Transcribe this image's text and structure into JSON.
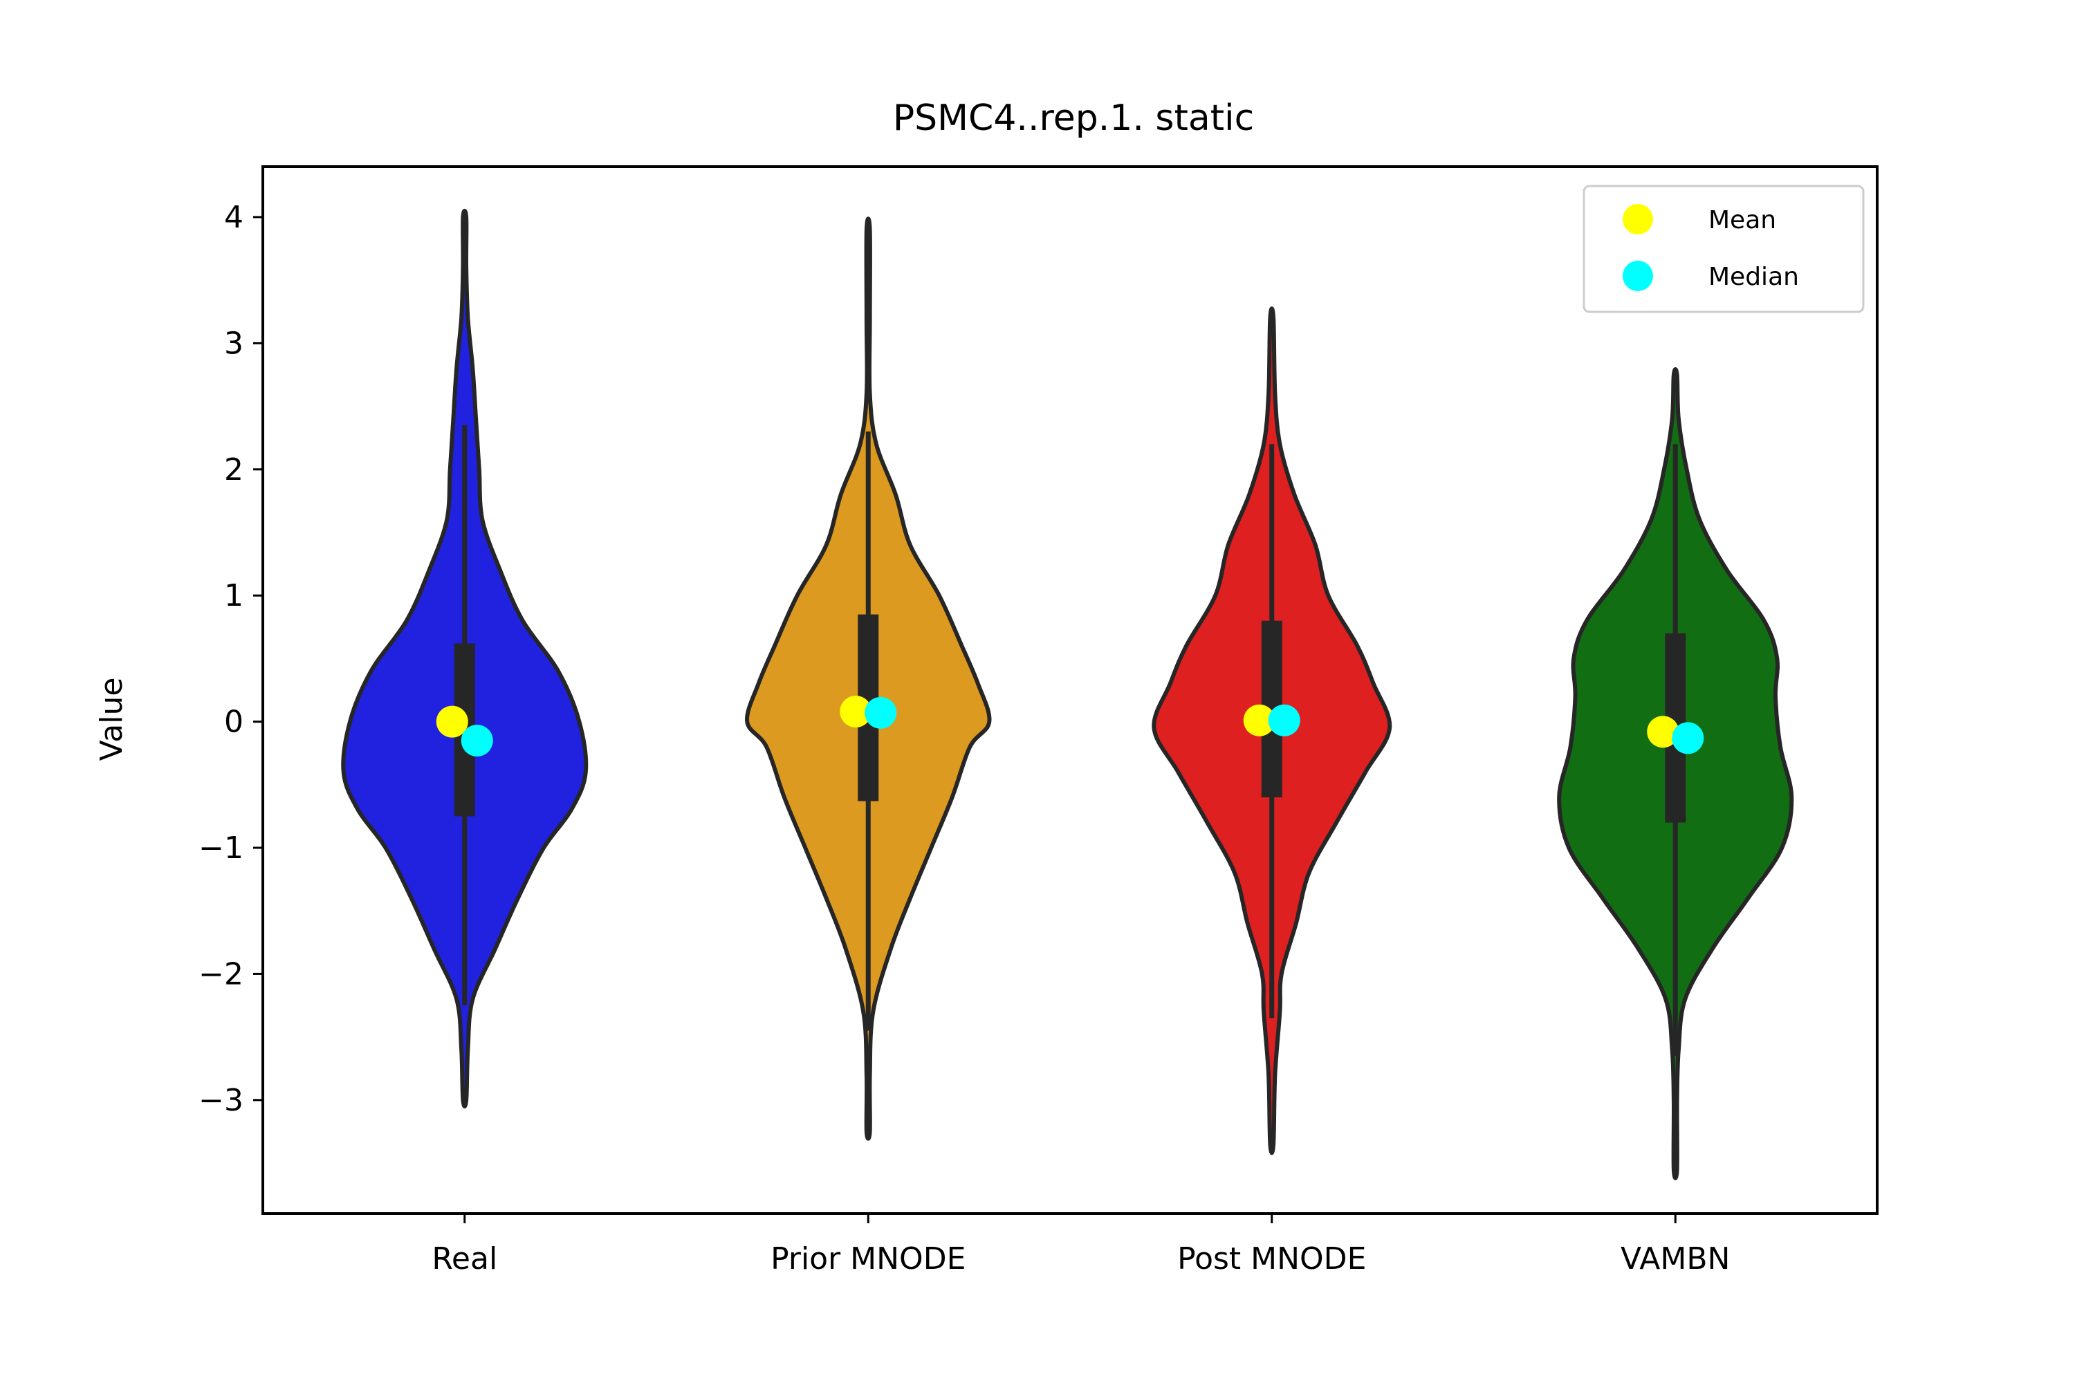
{
  "chart_data": {
    "type": "violin",
    "title": "PSMC4..rep.1. static",
    "xlabel": "",
    "ylabel": "Value",
    "ylim": [
      -3.9,
      4.4
    ],
    "yticks": [
      -3,
      -2,
      -1,
      0,
      1,
      2,
      3,
      4
    ],
    "ytick_labels": [
      "−3",
      "−2",
      "−1",
      "0",
      "1",
      "2",
      "3",
      "4"
    ],
    "categories": [
      "Real",
      "Prior MNODE",
      "Post MNODE",
      "VAMBN"
    ],
    "legend": {
      "position": "top-right",
      "entries": [
        {
          "label": "Mean",
          "color": "#ffff00"
        },
        {
          "label": "Median",
          "color": "#00ffff"
        }
      ]
    },
    "series": [
      {
        "category": "Real",
        "color": "#2121e0",
        "min": -3.0,
        "max": 4.0,
        "whisker_low": -2.25,
        "whisker_high": 2.35,
        "q1": -0.75,
        "q3": 0.62,
        "mean": 0.0,
        "median": -0.15,
        "density": [
          [
            -3.0,
            0.01
          ],
          [
            -2.6,
            0.02
          ],
          [
            -2.2,
            0.05
          ],
          [
            -1.8,
            0.19
          ],
          [
            -1.4,
            0.33
          ],
          [
            -1.0,
            0.49
          ],
          [
            -0.7,
            0.66
          ],
          [
            -0.4,
            0.75
          ],
          [
            0.0,
            0.71
          ],
          [
            0.4,
            0.58
          ],
          [
            0.8,
            0.36
          ],
          [
            1.2,
            0.22
          ],
          [
            1.6,
            0.11
          ],
          [
            2.0,
            0.09
          ],
          [
            2.4,
            0.07
          ],
          [
            2.8,
            0.05
          ],
          [
            3.2,
            0.02
          ],
          [
            3.6,
            0.01
          ],
          [
            4.0,
            0.01
          ]
        ]
      },
      {
        "category": "Prior MNODE",
        "color": "#dd9a20",
        "min": -3.25,
        "max": 3.9,
        "whisker_low": -2.45,
        "whisker_high": 2.3,
        "q1": -0.63,
        "q3": 0.85,
        "mean": 0.08,
        "median": 0.07,
        "density": [
          [
            -3.25,
            0.01
          ],
          [
            -2.8,
            0.01
          ],
          [
            -2.3,
            0.03
          ],
          [
            -1.8,
            0.14
          ],
          [
            -1.4,
            0.26
          ],
          [
            -1.0,
            0.39
          ],
          [
            -0.6,
            0.52
          ],
          [
            -0.2,
            0.63
          ],
          [
            0.0,
            0.75
          ],
          [
            0.3,
            0.68
          ],
          [
            0.6,
            0.58
          ],
          [
            1.0,
            0.44
          ],
          [
            1.4,
            0.26
          ],
          [
            1.8,
            0.17
          ],
          [
            2.2,
            0.05
          ],
          [
            2.6,
            0.01
          ],
          [
            3.2,
            0.01
          ],
          [
            3.9,
            0.01
          ]
        ]
      },
      {
        "category": "Post MNODE",
        "color": "#de2020",
        "min": -3.35,
        "max": 3.2,
        "whisker_low": -2.35,
        "whisker_high": 2.2,
        "q1": -0.6,
        "q3": 0.8,
        "mean": 0.01,
        "median": 0.01,
        "density": [
          [
            -3.35,
            0.01
          ],
          [
            -2.8,
            0.02
          ],
          [
            -2.3,
            0.05
          ],
          [
            -2.0,
            0.06
          ],
          [
            -1.6,
            0.15
          ],
          [
            -1.2,
            0.23
          ],
          [
            -0.8,
            0.4
          ],
          [
            -0.4,
            0.58
          ],
          [
            -0.05,
            0.73
          ],
          [
            0.3,
            0.63
          ],
          [
            0.6,
            0.53
          ],
          [
            1.0,
            0.35
          ],
          [
            1.4,
            0.27
          ],
          [
            1.8,
            0.14
          ],
          [
            2.2,
            0.05
          ],
          [
            2.6,
            0.02
          ],
          [
            3.2,
            0.01
          ]
        ]
      },
      {
        "category": "VAMBN",
        "color": "#126e12",
        "min": -3.55,
        "max": 2.75,
        "whisker_low": -2.65,
        "whisker_high": 2.2,
        "q1": -0.8,
        "q3": 0.7,
        "mean": -0.08,
        "median": -0.13,
        "density": [
          [
            -3.55,
            0.01
          ],
          [
            -3.0,
            0.01
          ],
          [
            -2.6,
            0.02
          ],
          [
            -2.2,
            0.06
          ],
          [
            -1.8,
            0.23
          ],
          [
            -1.4,
            0.45
          ],
          [
            -1.0,
            0.66
          ],
          [
            -0.6,
            0.72
          ],
          [
            -0.2,
            0.65
          ],
          [
            0.2,
            0.62
          ],
          [
            0.5,
            0.63
          ],
          [
            0.8,
            0.55
          ],
          [
            1.2,
            0.32
          ],
          [
            1.6,
            0.15
          ],
          [
            2.0,
            0.07
          ],
          [
            2.4,
            0.02
          ],
          [
            2.75,
            0.01
          ]
        ]
      }
    ]
  }
}
